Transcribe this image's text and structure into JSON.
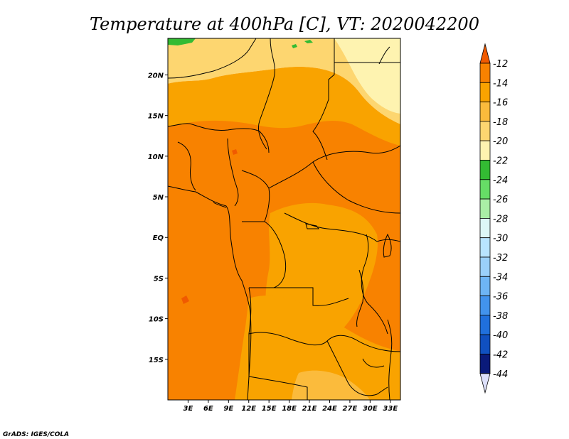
{
  "title": "Temperature at 400hPa [C], VT: 2020042200",
  "credit": "GrADS: IGES/COLA",
  "map": {
    "lon_range": [
      0,
      34.5
    ],
    "lat_range": [
      -20,
      24.5
    ],
    "lat_ticks": [
      {
        "lat": 20,
        "label": "20N"
      },
      {
        "lat": 15,
        "label": "15N"
      },
      {
        "lat": 10,
        "label": "10N"
      },
      {
        "lat": 5,
        "label": "5N"
      },
      {
        "lat": 0,
        "label": "EQ"
      },
      {
        "lat": -5,
        "label": "5S"
      },
      {
        "lat": -10,
        "label": "10S"
      },
      {
        "lat": -15,
        "label": "15S"
      }
    ],
    "lon_ticks": [
      {
        "lon": 3,
        "label": "3E"
      },
      {
        "lon": 6,
        "label": "6E"
      },
      {
        "lon": 9,
        "label": "9E"
      },
      {
        "lon": 12,
        "label": "12E"
      },
      {
        "lon": 15,
        "label": "15E"
      },
      {
        "lon": 18,
        "label": "18E"
      },
      {
        "lon": 21,
        "label": "21E"
      },
      {
        "lon": 24,
        "label": "24E"
      },
      {
        "lon": 27,
        "label": "27E"
      },
      {
        "lon": 30,
        "label": "30E"
      },
      {
        "lon": 33,
        "label": "33E"
      }
    ]
  },
  "colorbar": {
    "labels": [
      "-12",
      "-14",
      "-16",
      "-18",
      "-20",
      "-22",
      "-24",
      "-26",
      "-28",
      "-30",
      "-32",
      "-34",
      "-36",
      "-38",
      "-40",
      "-42",
      "-44"
    ],
    "colors": [
      "#f05a00",
      "#f88200",
      "#f9a300",
      "#fbbb3c",
      "#fdd670",
      "#fef3b0",
      "#33bb33",
      "#66dd66",
      "#aaeea6",
      "#ddf7f7",
      "#b8e4ff",
      "#9ad0fa",
      "#6eb5f5",
      "#4293ed",
      "#2070dd",
      "#1050c0",
      "#0a1a7a",
      "#dde0fa"
    ]
  },
  "field_colors": {
    "m12_14": "#f05a00",
    "m14_16": "#f88200",
    "m16_18": "#f9a300",
    "m18_20": "#fbbb3c",
    "m20_22": "#fdd670",
    "m22_24": "#fef3b0",
    "m24_26": "#33bb33"
  }
}
